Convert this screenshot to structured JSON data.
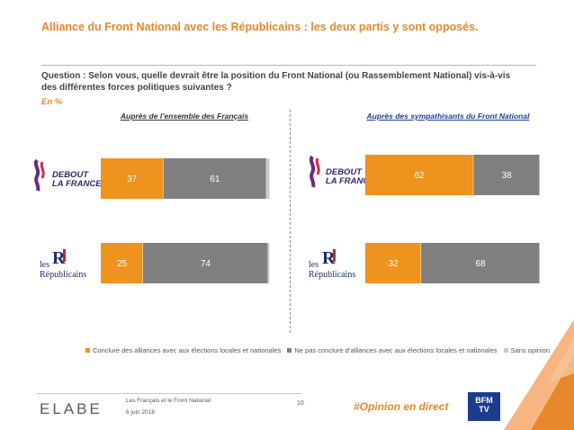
{
  "title": "Alliance du Front National avec les Républicains : les deux partis y sont opposés.",
  "question": "Question : Selon vous, quelle devrait être la position du Front National (ou Rassemblement National) vis-à-vis des différentes forces politiques suivantes ?",
  "unit": "En %",
  "panels": [
    {
      "title": "Auprès de l’ensemble des Français"
    },
    {
      "title": "Auprès des sympathisants du Front National"
    }
  ],
  "logos": {
    "debout_line1": "DEBOUT",
    "debout_line2": "LA FRANCE",
    "lr_les": "les",
    "lr_name": "Républicains",
    "lr_mark": "R"
  },
  "chart_data": [
    {
      "type": "bar",
      "orientation": "horizontal",
      "stacked": true,
      "title": "Auprès de l’ensemble des Français",
      "categories": [
        "Debout la France",
        "Les Républicains"
      ],
      "series": [
        {
          "name": "Conclure des alliances avec aux élections locales et nationales",
          "values": [
            37,
            25
          ],
          "color": "#f0921e"
        },
        {
          "name": "Ne pas conclure d’alliances avec aux élections locales et nationales",
          "values": [
            61,
            74
          ],
          "color": "#7f7f7f"
        },
        {
          "name": "Sans opinion",
          "values": [
            2,
            1
          ],
          "color": "#c9c9c9"
        }
      ]
    },
    {
      "type": "bar",
      "orientation": "horizontal",
      "stacked": true,
      "title": "Auprès des sympathisants du Front National",
      "categories": [
        "Debout la France",
        "Les Républicains"
      ],
      "series": [
        {
          "name": "Conclure des alliances avec aux élections locales et nationales",
          "values": [
            62,
            32
          ],
          "color": "#f0921e"
        },
        {
          "name": "Ne pas conclure d’alliances avec aux élections locales et nationales",
          "values": [
            38,
            68
          ],
          "color": "#7f7f7f"
        },
        {
          "name": "Sans opinion",
          "values": [
            0,
            0
          ],
          "color": "#c9c9c9"
        }
      ]
    }
  ],
  "legend": [
    {
      "label": "Conclure des alliances avec aux élections locales et nationales",
      "color": "#f0921e"
    },
    {
      "label": "Ne pas conclure d’alliances avec aux élections locales et nationales",
      "color": "#7f7f7f"
    },
    {
      "label": "Sans opinion",
      "color": "#c9c9c9"
    }
  ],
  "footer": {
    "brand": "ELABE",
    "study": "Les Français et le Front National",
    "date": "6 juin 2018",
    "page": "10",
    "hashtag": "#Opinion en direct",
    "partner_line1": "BFM",
    "partner_line2": "TV"
  }
}
